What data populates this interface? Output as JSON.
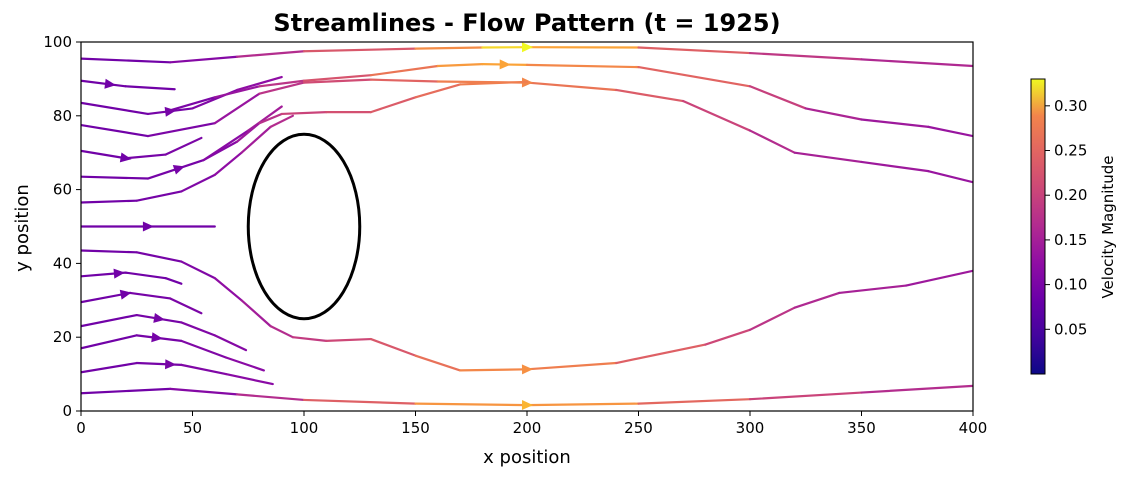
{
  "chart_data": {
    "type": "streamplot",
    "title": "Streamlines - Flow Pattern (t = 1925)",
    "xlabel": "x position",
    "ylabel": "y position",
    "xlim": [
      0,
      400
    ],
    "ylim": [
      0,
      100
    ],
    "xticks": [
      "0",
      "50",
      "100",
      "150",
      "200",
      "250",
      "300",
      "350",
      "400"
    ],
    "yticks": [
      "0",
      "20",
      "40",
      "60",
      "80",
      "100"
    ],
    "grid": false,
    "colormap": "plasma",
    "colorbar": {
      "label": "Velocity Magnitude",
      "range": [
        0.0,
        0.33
      ],
      "ticks": [
        "0.05",
        "0.10",
        "0.15",
        "0.20",
        "0.25",
        "0.30"
      ],
      "tick_values": [
        0.05,
        0.1,
        0.15,
        0.2,
        0.25,
        0.3
      ]
    },
    "obstacle": {
      "shape": "ellipse",
      "cx": 100,
      "cy": 50,
      "rx": 25,
      "ry": 25,
      "stroke": "#000000"
    },
    "streamlines": [
      {
        "points": [
          [
            0,
            95.5
          ],
          [
            40,
            94.5
          ],
          [
            70,
            96
          ],
          [
            100,
            97.5
          ],
          [
            150,
            98.2
          ],
          [
            180,
            98.5
          ],
          [
            200,
            98.6
          ],
          [
            250,
            98.5
          ],
          [
            300,
            97
          ],
          [
            350,
            95.3
          ],
          [
            400,
            93.5
          ]
        ],
        "speeds": [
          0.08,
          0.08,
          0.12,
          0.18,
          0.23,
          0.3,
          0.33,
          0.25,
          0.18,
          0.15,
          0.14
        ],
        "arrows": [
          200
        ]
      },
      {
        "points": [
          [
            0,
            89.5
          ],
          [
            20,
            88
          ],
          [
            42,
            87.2
          ]
        ],
        "speeds": [
          0.08,
          0.08,
          0.08
        ],
        "arrows": [
          13
        ]
      },
      {
        "points": [
          [
            0,
            83.5
          ],
          [
            30,
            80.5
          ],
          [
            50,
            82
          ],
          [
            70,
            87
          ],
          [
            90,
            90.5
          ]
        ],
        "speeds": [
          0.08,
          0.08,
          0.09,
          0.1,
          0.12
        ],
        "arrows": [
          40
        ]
      },
      {
        "points": [
          [
            40,
            81.5
          ],
          [
            60,
            85
          ],
          [
            80,
            88
          ],
          [
            100,
            89.5
          ],
          [
            130,
            91
          ],
          [
            160,
            93.5
          ],
          [
            180,
            94
          ],
          [
            200,
            93.8
          ],
          [
            250,
            93.2
          ],
          [
            300,
            88
          ],
          [
            325,
            82
          ],
          [
            350,
            79
          ],
          [
            380,
            77
          ],
          [
            400,
            74.5
          ]
        ],
        "speeds": [
          0.08,
          0.1,
          0.14,
          0.18,
          0.22,
          0.26,
          0.3,
          0.28,
          0.24,
          0.2,
          0.15,
          0.13,
          0.12,
          0.12
        ],
        "arrows": [
          190
        ]
      },
      {
        "points": [
          [
            0,
            77.5
          ],
          [
            30,
            74.5
          ],
          [
            60,
            78
          ],
          [
            80,
            86
          ],
          [
            100,
            89
          ],
          [
            130,
            89.8
          ],
          [
            160,
            89.3
          ],
          [
            200,
            89
          ],
          [
            240,
            87
          ],
          [
            270,
            84
          ],
          [
            300,
            76
          ],
          [
            320,
            70
          ],
          [
            350,
            67.5
          ],
          [
            380,
            65
          ],
          [
            400,
            62
          ]
        ],
        "speeds": [
          0.08,
          0.08,
          0.1,
          0.14,
          0.18,
          0.2,
          0.24,
          0.26,
          0.22,
          0.2,
          0.16,
          0.14,
          0.13,
          0.12,
          0.12
        ],
        "arrows": [
          200
        ]
      },
      {
        "points": [
          [
            0,
            70.5
          ],
          [
            20,
            68.5
          ],
          [
            38,
            69.5
          ],
          [
            54,
            74
          ]
        ],
        "speeds": [
          0.08,
          0.08,
          0.09,
          0.09
        ],
        "arrows": [
          20
        ]
      },
      {
        "points": [
          [
            0,
            63.5
          ],
          [
            30,
            63
          ],
          [
            55,
            68
          ],
          [
            75,
            76
          ],
          [
            90,
            82.5
          ]
        ],
        "speeds": [
          0.08,
          0.08,
          0.09,
          0.12,
          0.14
        ],
        "arrows": [
          44
        ]
      },
      {
        "points": [
          [
            55,
            68
          ],
          [
            70,
            73
          ],
          [
            80,
            78
          ],
          [
            90,
            80.5
          ],
          [
            110,
            81
          ],
          [
            130,
            81
          ],
          [
            150,
            85
          ],
          [
            170,
            88.5
          ],
          [
            200,
            89.2
          ]
        ],
        "speeds": [
          0.09,
          0.11,
          0.14,
          0.17,
          0.19,
          0.2,
          0.22,
          0.24,
          0.26
        ],
        "arrows": []
      },
      {
        "points": [
          [
            0,
            56.5
          ],
          [
            25,
            57
          ],
          [
            45,
            59.5
          ],
          [
            60,
            64
          ],
          [
            72,
            70
          ],
          [
            85,
            77
          ],
          [
            95,
            80
          ]
        ],
        "speeds": [
          0.08,
          0.08,
          0.09,
          0.1,
          0.12,
          0.14,
          0.16
        ],
        "arrows": []
      },
      {
        "points": [
          [
            0,
            50
          ],
          [
            30,
            50
          ],
          [
            60,
            50
          ]
        ],
        "speeds": [
          0.08,
          0.08,
          0.08
        ],
        "arrows": [
          30
        ]
      },
      {
        "points": [
          [
            0,
            43.5
          ],
          [
            25,
            43
          ],
          [
            45,
            40.5
          ],
          [
            60,
            36
          ],
          [
            72,
            30
          ],
          [
            85,
            23
          ],
          [
            95,
            20
          ]
        ],
        "speeds": [
          0.08,
          0.08,
          0.09,
          0.1,
          0.12,
          0.14,
          0.16
        ],
        "arrows": []
      },
      {
        "points": [
          [
            0,
            36.5
          ],
          [
            20,
            37.5
          ],
          [
            38,
            36
          ],
          [
            45,
            34.5
          ]
        ],
        "speeds": [
          0.08,
          0.08,
          0.08,
          0.08
        ],
        "arrows": [
          17
        ]
      },
      {
        "points": [
          [
            0,
            29.5
          ],
          [
            22,
            32
          ],
          [
            40,
            30.5
          ],
          [
            54,
            26.5
          ]
        ],
        "speeds": [
          0.08,
          0.08,
          0.09,
          0.09
        ],
        "arrows": [
          20
        ]
      },
      {
        "points": [
          [
            0,
            23
          ],
          [
            25,
            26
          ],
          [
            45,
            24
          ],
          [
            60,
            20.5
          ],
          [
            74,
            16.5
          ]
        ],
        "speeds": [
          0.08,
          0.08,
          0.09,
          0.1,
          0.1
        ],
        "arrows": [
          35
        ]
      },
      {
        "points": [
          [
            0,
            17
          ],
          [
            25,
            20.5
          ],
          [
            45,
            19
          ],
          [
            65,
            14.5
          ],
          [
            82,
            11
          ]
        ],
        "speeds": [
          0.08,
          0.08,
          0.09,
          0.1,
          0.11
        ],
        "arrows": [
          34
        ]
      },
      {
        "points": [
          [
            0,
            10.5
          ],
          [
            25,
            13
          ],
          [
            45,
            12.5
          ],
          [
            65,
            10
          ],
          [
            86,
            7.3
          ]
        ],
        "speeds": [
          0.08,
          0.08,
          0.09,
          0.1,
          0.11
        ],
        "arrows": [
          40
        ]
      },
      {
        "points": [
          [
            95,
            20
          ],
          [
            110,
            19
          ],
          [
            130,
            19.5
          ],
          [
            150,
            15
          ],
          [
            170,
            11
          ],
          [
            200,
            11.3
          ],
          [
            240,
            13
          ],
          [
            280,
            18
          ],
          [
            300,
            22
          ],
          [
            320,
            28
          ],
          [
            340,
            32
          ],
          [
            370,
            34
          ],
          [
            400,
            38
          ]
        ],
        "speeds": [
          0.16,
          0.18,
          0.19,
          0.22,
          0.25,
          0.27,
          0.23,
          0.2,
          0.17,
          0.15,
          0.14,
          0.13,
          0.12
        ],
        "arrows": [
          200
        ]
      },
      {
        "points": [
          [
            0,
            4.8
          ],
          [
            40,
            6
          ],
          [
            70,
            4.5
          ],
          [
            100,
            3
          ],
          [
            150,
            2
          ],
          [
            200,
            1.6
          ],
          [
            250,
            2
          ],
          [
            300,
            3.2
          ],
          [
            350,
            5
          ],
          [
            400,
            6.8
          ]
        ],
        "speeds": [
          0.08,
          0.08,
          0.12,
          0.18,
          0.25,
          0.3,
          0.25,
          0.2,
          0.16,
          0.14
        ],
        "arrows": [
          200
        ]
      }
    ]
  }
}
